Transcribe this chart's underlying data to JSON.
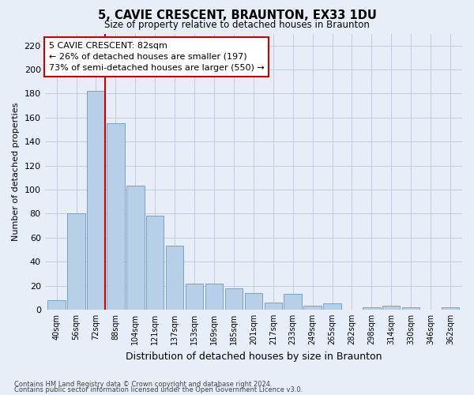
{
  "title": "5, CAVIE CRESCENT, BRAUNTON, EX33 1DU",
  "subtitle": "Size of property relative to detached houses in Braunton",
  "xlabel": "Distribution of detached houses by size in Braunton",
  "ylabel": "Number of detached properties",
  "categories": [
    "40sqm",
    "56sqm",
    "72sqm",
    "88sqm",
    "104sqm",
    "121sqm",
    "137sqm",
    "153sqm",
    "169sqm",
    "185sqm",
    "201sqm",
    "217sqm",
    "233sqm",
    "249sqm",
    "265sqm",
    "282sqm",
    "298sqm",
    "314sqm",
    "330sqm",
    "346sqm",
    "362sqm"
  ],
  "values": [
    8,
    80,
    182,
    155,
    103,
    78,
    53,
    22,
    22,
    18,
    14,
    6,
    13,
    3,
    5,
    0,
    2,
    3,
    2,
    0,
    2
  ],
  "bar_color": "#b8cfe8",
  "bar_edge_color": "#6898c8",
  "vline_color": "#cc0000",
  "vline_x_index": 2,
  "annotation_text": "5 CAVIE CRESCENT: 82sqm\n← 26% of detached houses are smaller (197)\n73% of semi-detached houses are larger (550) →",
  "annotation_box_facecolor": "white",
  "annotation_box_edgecolor": "#cc0000",
  "ylim": [
    0,
    230
  ],
  "yticks": [
    0,
    20,
    40,
    60,
    80,
    100,
    120,
    140,
    160,
    180,
    200,
    220
  ],
  "footer_line1": "Contains HM Land Registry data © Crown copyright and database right 2024.",
  "footer_line2": "Contains public sector information licensed under the Open Government Licence v3.0.",
  "background_color": "#e8eef8",
  "grid_color": "#c0cce0"
}
